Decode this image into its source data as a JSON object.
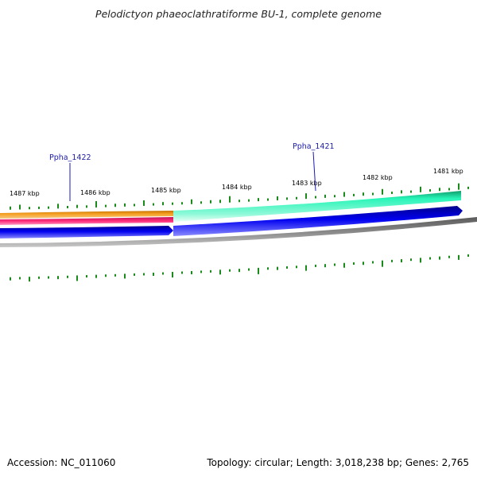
{
  "title": "Pelodictyon phaeoclathratiforme BU-1, complete genome",
  "accession": "Accession: NC_011060",
  "topology": "Topology: circular; Length: 3,018,238 bp; Genes: 2,765",
  "gene_labels": [
    "Ppha_1422",
    "Ppha_1421"
  ],
  "ticks": [
    "1487 kbp",
    "1486 kbp",
    "1485 kbp",
    "1484 kbp",
    "1483 kbp",
    "1482 kbp",
    "1481 kbp"
  ],
  "colors": {
    "backbone": "#808080",
    "forward_cds_left": "#f29b1d",
    "forward_cds_right": "#19f0b2",
    "forward_rna": "#ff2d7a",
    "reverse_cds": "#0000e6",
    "gc_marks": "#1a8a1a",
    "gene_label": "#1a1aa6",
    "pointer": "#1a1ab4"
  }
}
